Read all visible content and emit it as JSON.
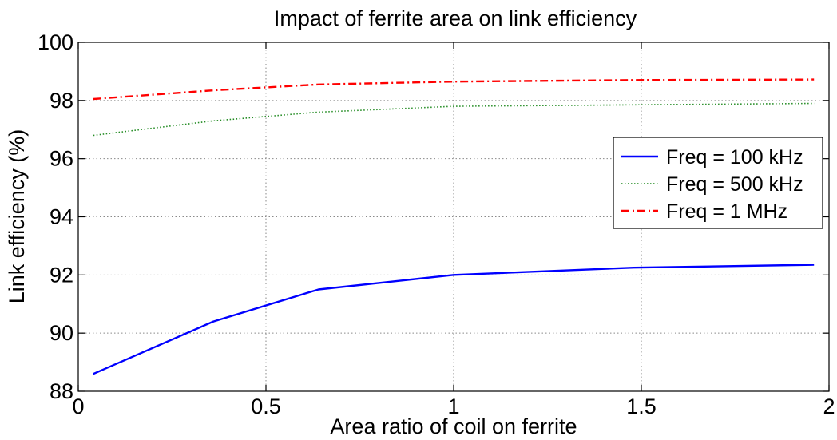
{
  "chart_data": {
    "type": "line",
    "title": "Impact of ferrite area on link efficiency",
    "xlabel": "Area ratio of coil on ferrite",
    "ylabel": "Link efficiency (%)",
    "xlim": [
      0,
      2
    ],
    "ylim": [
      88,
      100
    ],
    "xticks": [
      0,
      0.5,
      1,
      1.5,
      2
    ],
    "xtick_labels": [
      "0",
      "0.5",
      "1",
      "1.5",
      "2"
    ],
    "yticks": [
      88,
      90,
      92,
      94,
      96,
      98,
      100
    ],
    "ytick_labels": [
      "88",
      "90",
      "92",
      "94",
      "96",
      "98",
      "100"
    ],
    "grid": true,
    "legend_position": "right",
    "series": [
      {
        "name": "Freq = 100 kHz",
        "color": "#0000ff",
        "style": "solid",
        "x": [
          0.04,
          0.36,
          0.64,
          1.0,
          1.48,
          1.96
        ],
        "y": [
          88.6,
          90.4,
          91.5,
          92.0,
          92.25,
          92.35
        ]
      },
      {
        "name": "Freq = 500 kHz",
        "color": "#228b22",
        "style": "dotted",
        "x": [
          0.04,
          0.36,
          0.64,
          1.0,
          1.48,
          1.96
        ],
        "y": [
          96.8,
          97.3,
          97.6,
          97.8,
          97.85,
          97.9
        ]
      },
      {
        "name": "Freq = 1 MHz",
        "color": "#ff0000",
        "style": "dashdot",
        "x": [
          0.04,
          0.36,
          0.64,
          1.0,
          1.48,
          1.96
        ],
        "y": [
          98.05,
          98.35,
          98.55,
          98.65,
          98.7,
          98.72
        ]
      }
    ]
  }
}
